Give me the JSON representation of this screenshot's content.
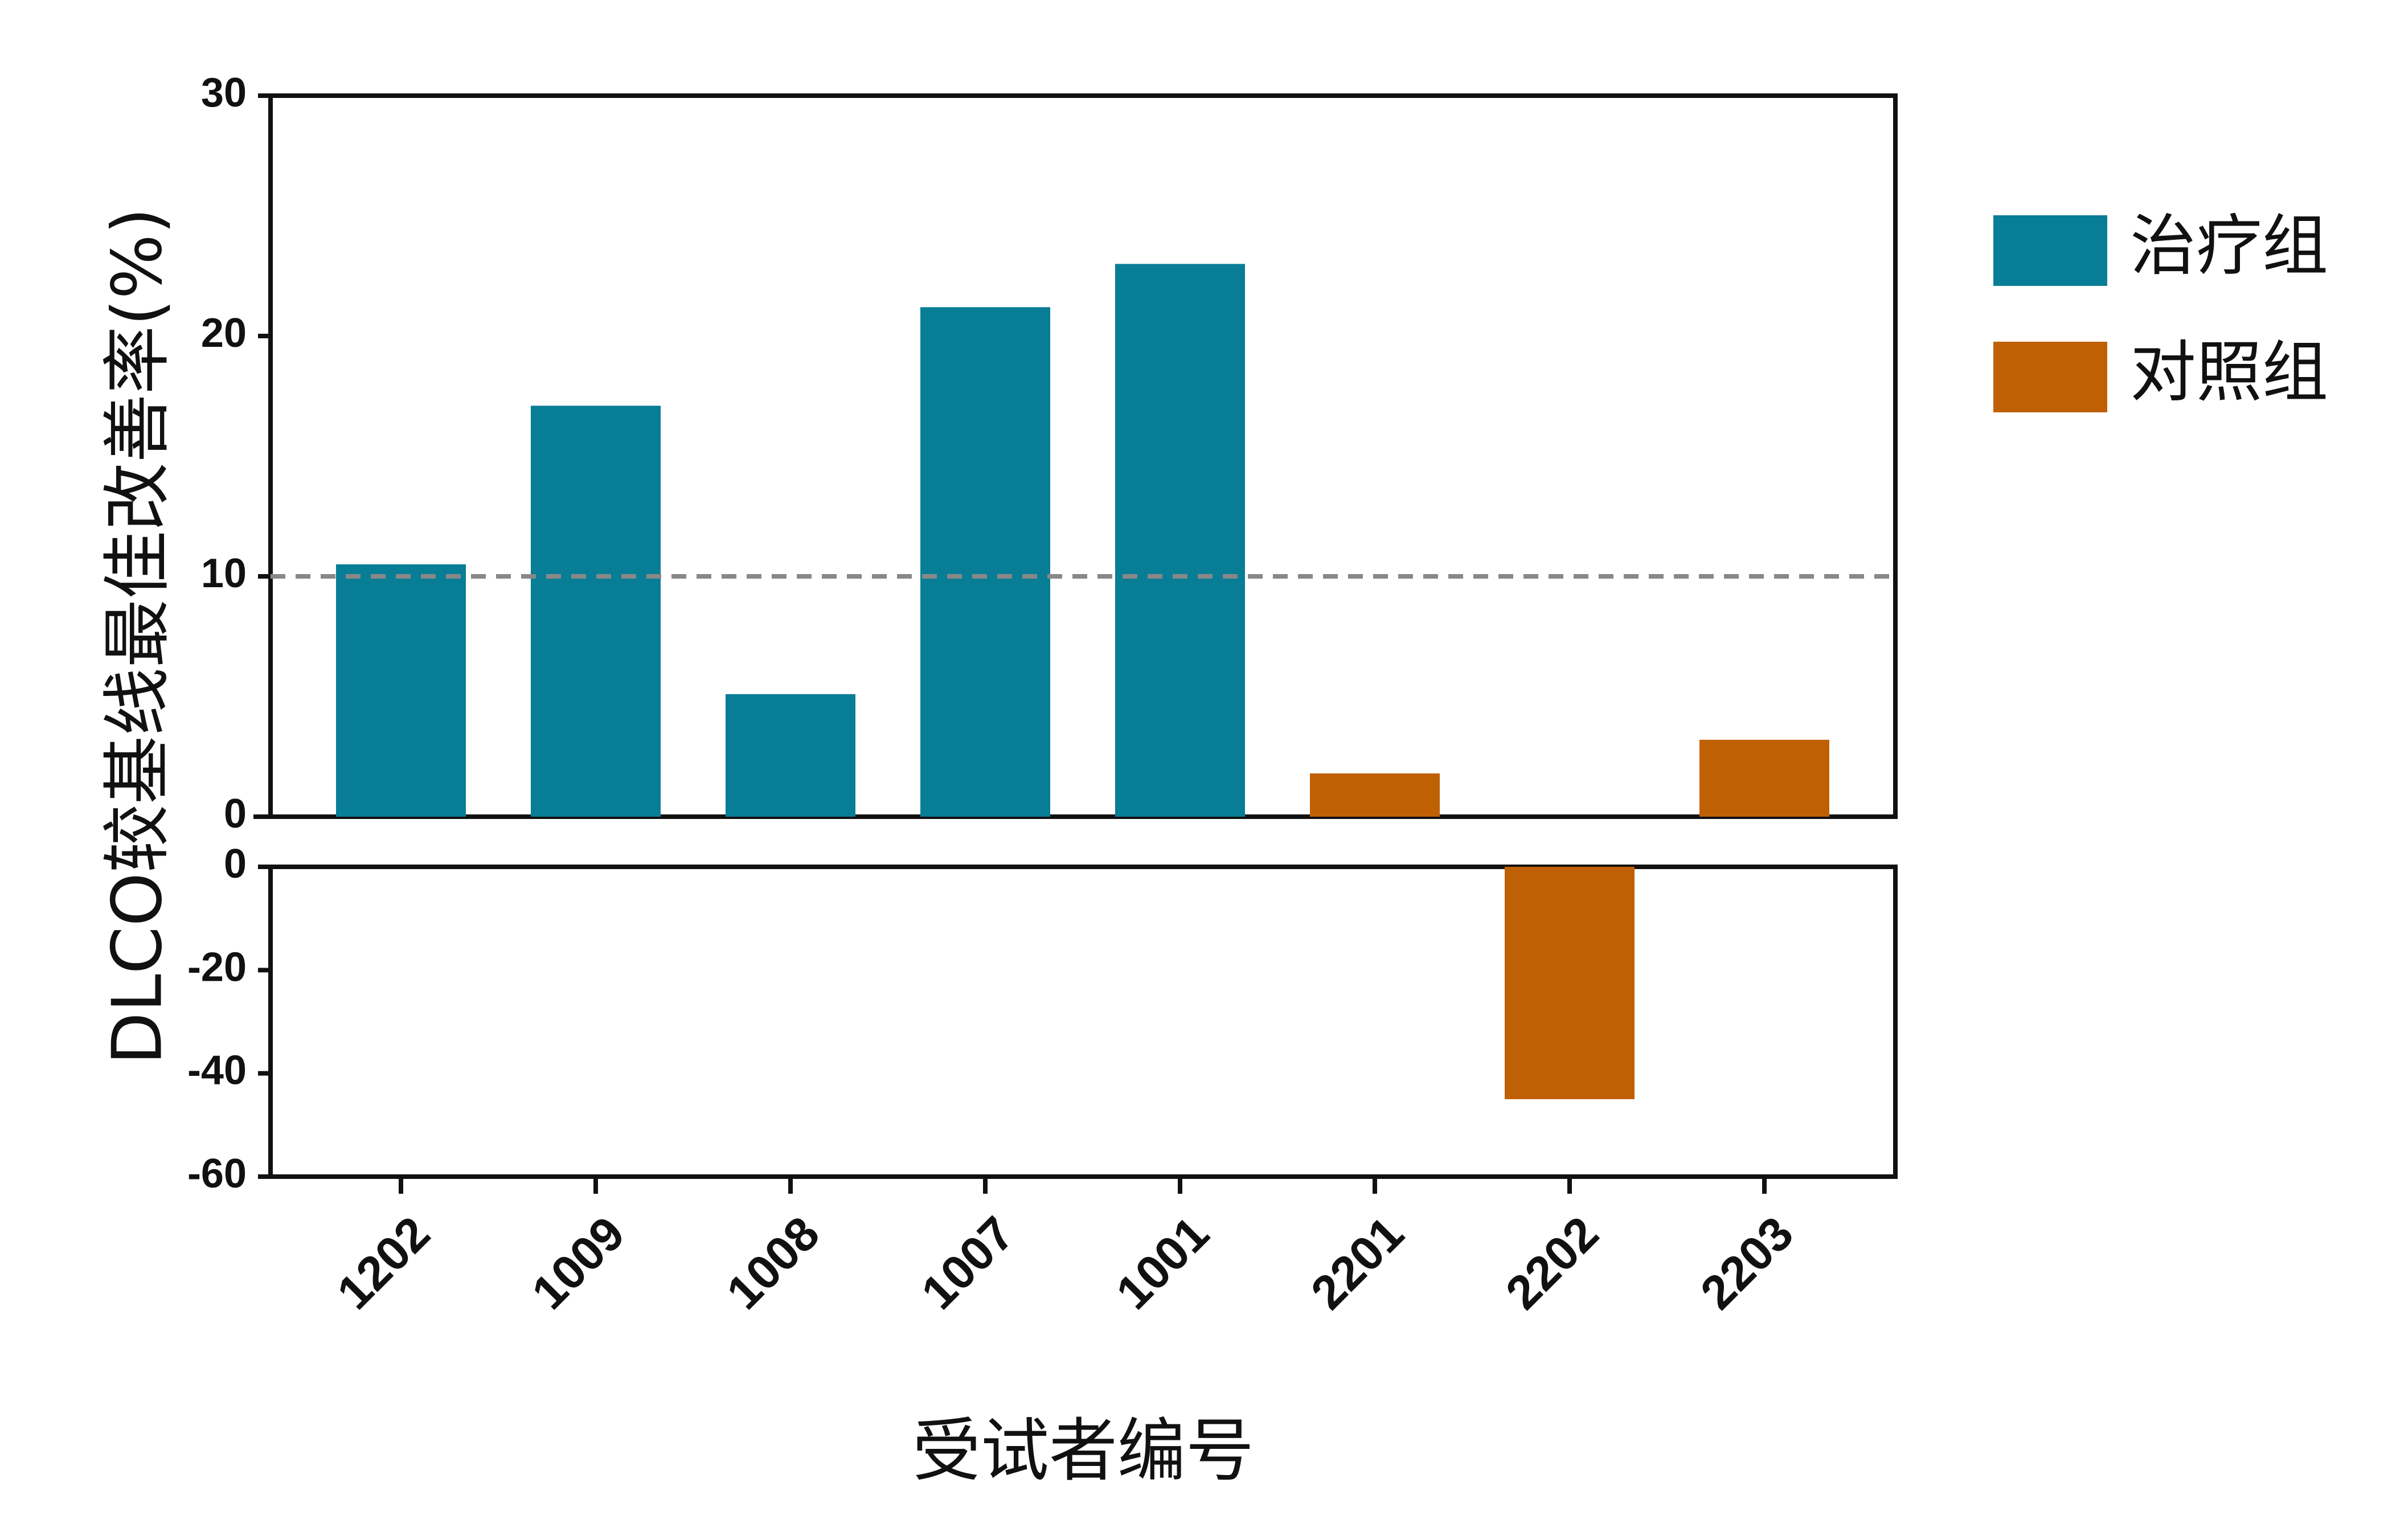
{
  "chart_data": {
    "type": "bar",
    "ylabel": "DLCO较基线最佳改善率(%)",
    "xlabel": "受试者编号",
    "categories": [
      "1202",
      "1009",
      "1008",
      "1007",
      "1001",
      "2201",
      "2202",
      "2203"
    ],
    "values": [
      10.5,
      17.1,
      5.1,
      21.2,
      23.0,
      1.8,
      -45.0,
      3.2
    ],
    "groups": [
      "治疗组",
      "治疗组",
      "治疗组",
      "治疗组",
      "治疗组",
      "对照组",
      "对照组",
      "对照组"
    ],
    "legend": [
      {
        "name": "治疗组",
        "color": "#087D96"
      },
      {
        "name": "对照组",
        "color": "#C06005"
      }
    ],
    "y_axis_segments": [
      {
        "ylim": [
          0,
          30
        ],
        "ticks": [
          0,
          10,
          20,
          30
        ],
        "tick_labels": [
          "0",
          "10",
          "20",
          "30"
        ]
      },
      {
        "ylim": [
          -60,
          0
        ],
        "ticks": [
          -60,
          -40,
          -20,
          0
        ],
        "tick_labels": [
          "-60",
          "-40",
          "-20",
          "0"
        ]
      }
    ],
    "reference_line": {
      "y": 10,
      "style": "dashed",
      "color": "#888888"
    },
    "legend_position": "right"
  }
}
